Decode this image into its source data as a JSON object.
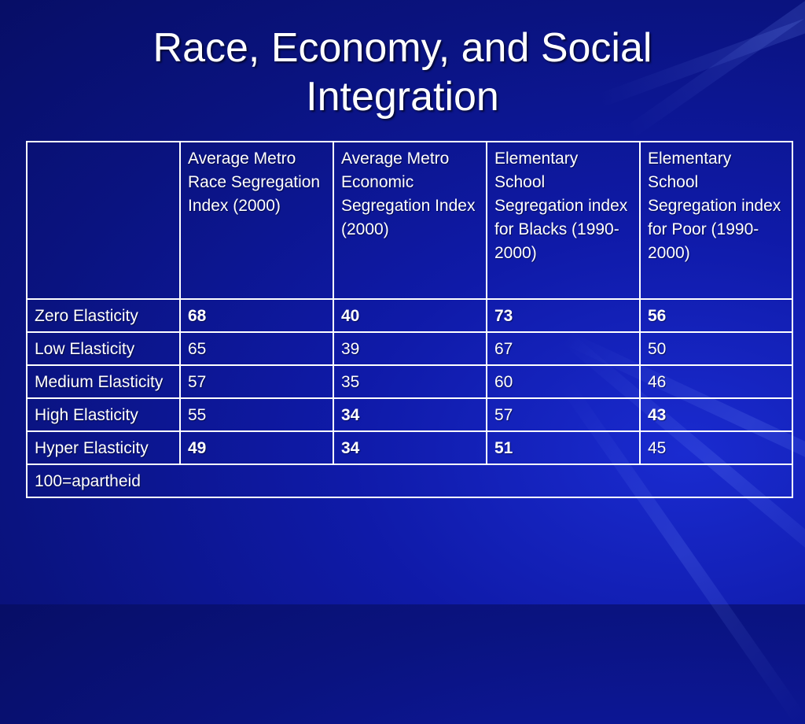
{
  "title_line1": "Race, Economy, and Social",
  "title_line2": "Integration",
  "headers": [
    "",
    "Average Metro Race Segregation Index (2000)",
    "Average Metro Economic Segregation Index (2000)",
    "Elementary School Segregation index for Blacks (1990-2000)",
    "Elementary School Segregation index for Poor (1990-2000)"
  ],
  "rows": [
    {
      "label": "Zero Elasticity",
      "values": [
        "68",
        "40",
        "73",
        "56"
      ]
    },
    {
      "label": "Low Elasticity",
      "values": [
        "65",
        "39",
        "67",
        "50"
      ]
    },
    {
      "label": "Medium Elasticity",
      "values": [
        "57",
        "35",
        "60",
        "46"
      ]
    },
    {
      "label": "High Elasticity",
      "values": [
        "55",
        "34",
        "57",
        "43"
      ]
    },
    {
      "label": "Hyper Elasticity",
      "values": [
        "49",
        "34",
        "51",
        "45"
      ]
    }
  ],
  "footer": "100=apartheid"
}
